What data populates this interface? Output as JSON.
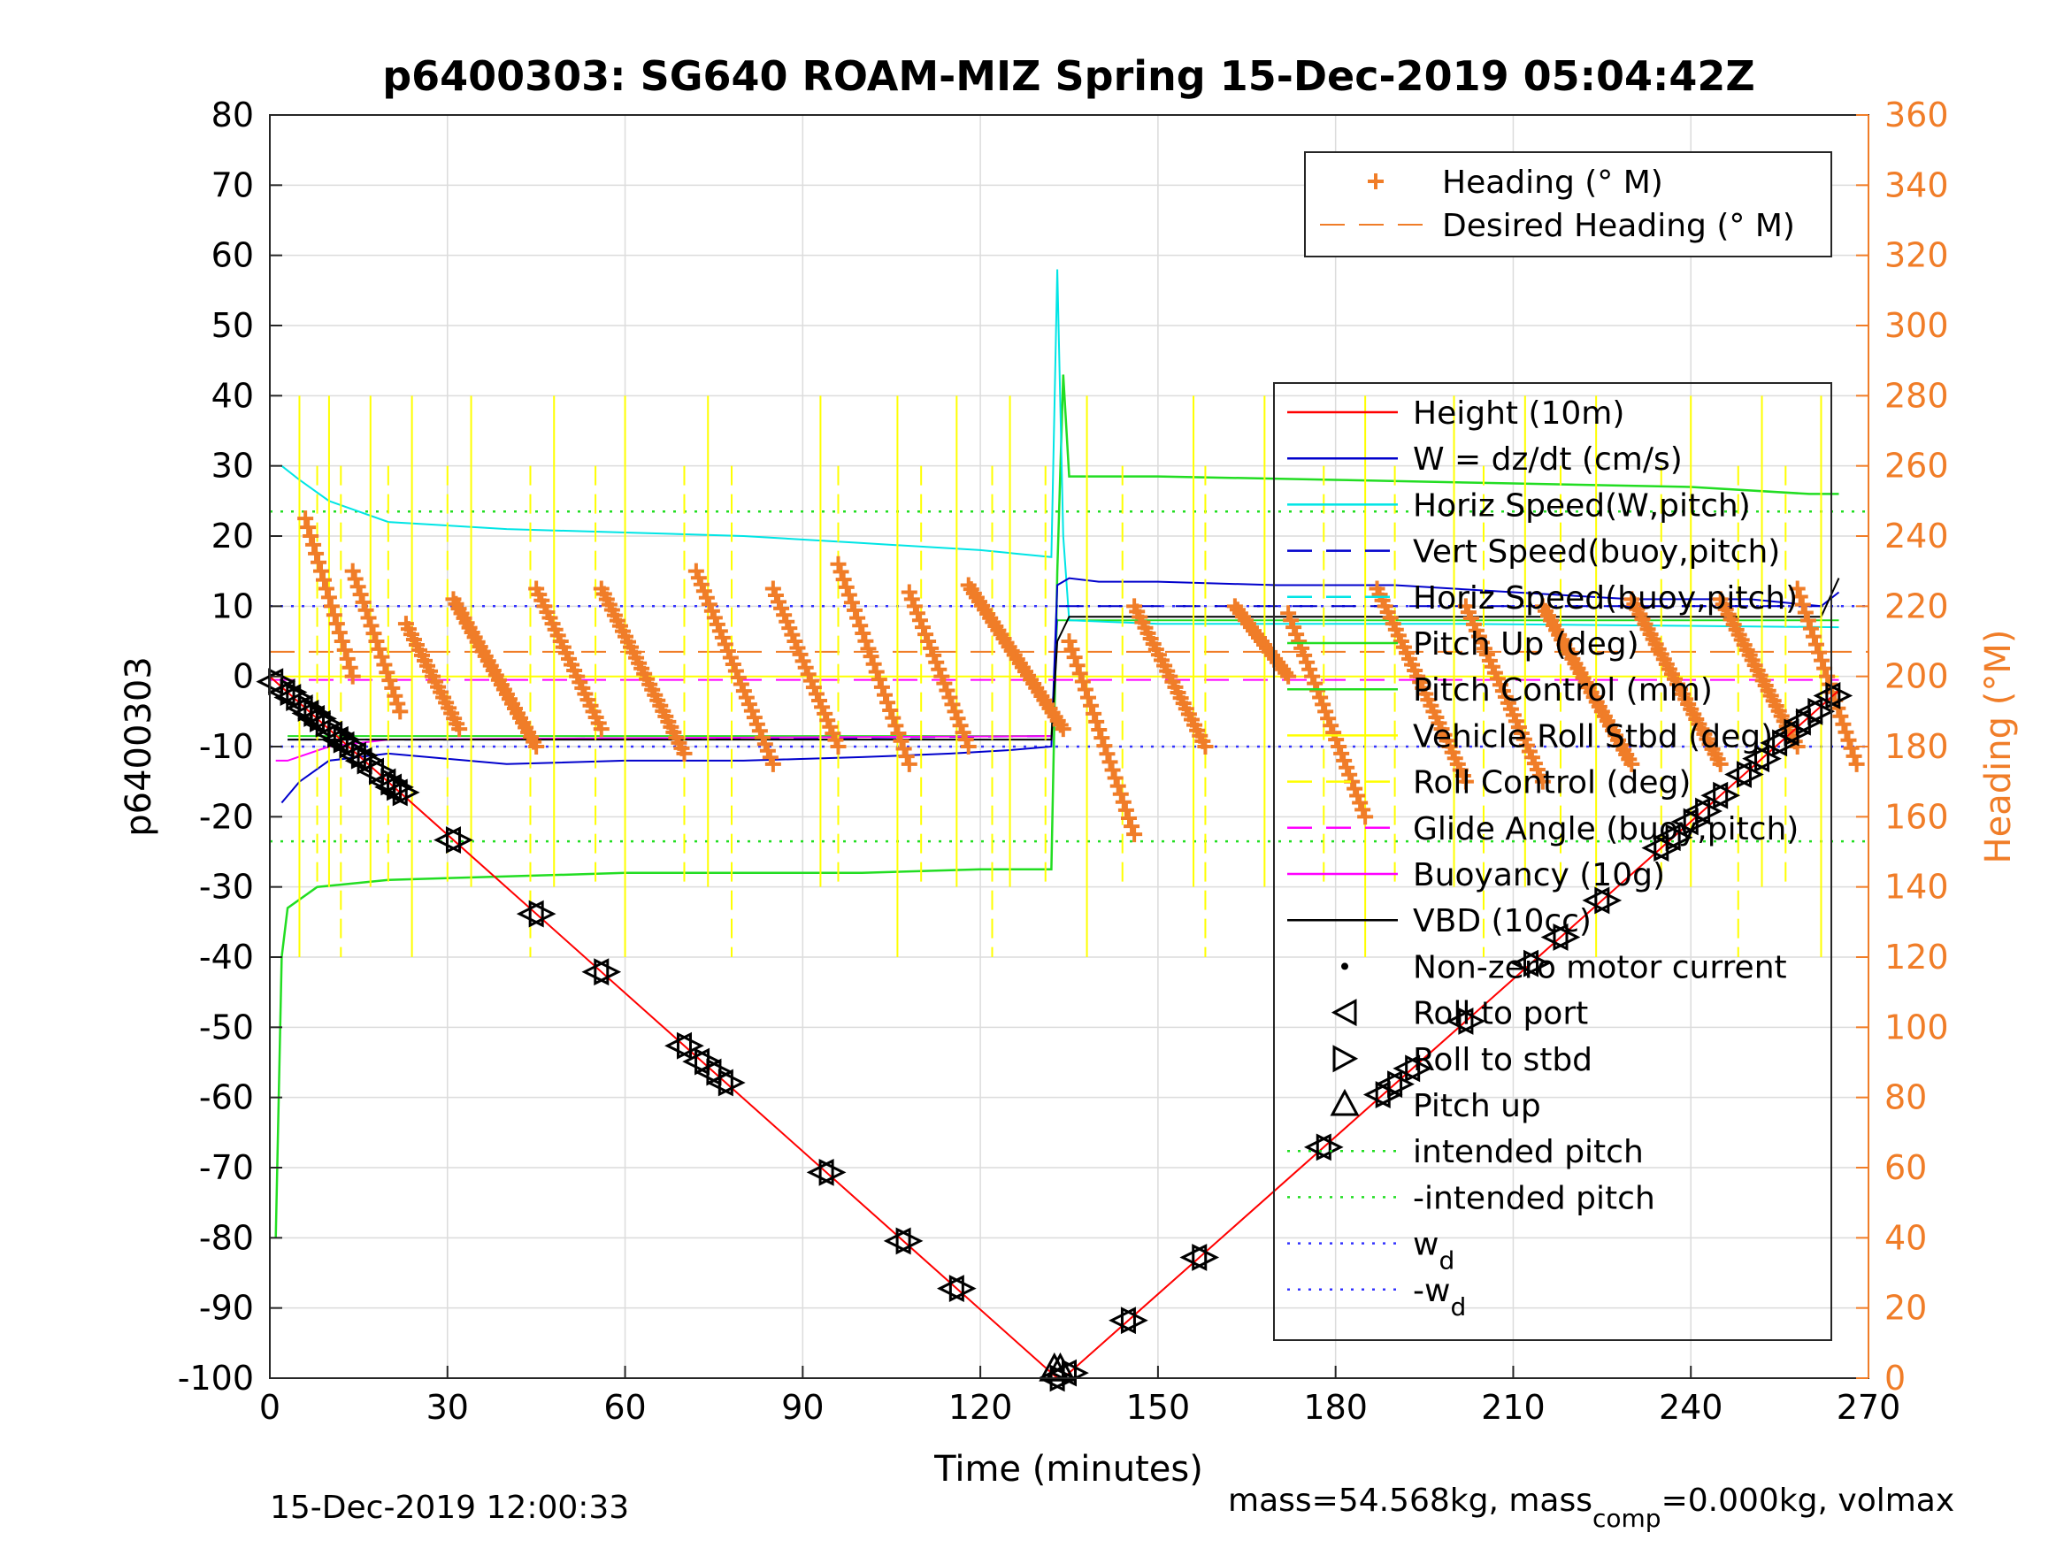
{
  "chart_data": {
    "type": "line",
    "title": "p6400303: SG640 ROAM-MIZ Spring 15-Dec-2019 05:04:42Z",
    "xlabel": "Time (minutes)",
    "ylabel": "p6400303",
    "ylabel_right": "Heading (°M)",
    "xlim": [
      0,
      270
    ],
    "ylim": [
      -100,
      80
    ],
    "ylim_right": [
      0,
      360
    ],
    "x_ticks": [
      0,
      30,
      60,
      90,
      120,
      150,
      180,
      210,
      240,
      270
    ],
    "y_ticks": [
      80,
      70,
      60,
      50,
      40,
      30,
      20,
      10,
      0,
      -10,
      -20,
      -30,
      -40,
      -50,
      -60,
      -70,
      -80,
      -90,
      -100
    ],
    "y_right_ticks": [
      360,
      340,
      320,
      300,
      280,
      260,
      240,
      220,
      200,
      180,
      160,
      140,
      120,
      100,
      80,
      60,
      40,
      20,
      0
    ],
    "grid": true,
    "colors": {
      "heading": "#f07d28",
      "height": "#ff0000",
      "w": "#0000cc",
      "horiz": "#00e5e5",
      "pitch": "#22dd22",
      "roll": "#ffff00",
      "glide": "#ff00ff",
      "vbd": "#000000",
      "wd": "#3333ff",
      "intended": "#22dd22"
    },
    "legend_heading": {
      "placement": "top-right",
      "entries": [
        "Heading (° M)",
        "Desired Heading (° M)"
      ]
    },
    "legend_main": {
      "placement": "right",
      "entries": [
        "Height (10m)",
        "W = dz/dt (cm/s)",
        "Horiz Speed(W,pitch)",
        "Vert Speed(buoy,pitch)",
        "Horiz Speed(buoy,pitch)",
        "Pitch Up (deg)",
        "Pitch Control (mm)",
        "Vehicle Roll Stbd (deg)",
        "Roll Control (deg)",
        "Glide Angle (buoy,pitch)",
        "Buoyancy (10g)",
        "VBD (10cc)",
        "Non-zero motor current",
        "Roll to port",
        "Roll to stbd",
        "Pitch up",
        "intended pitch",
        "-intended pitch",
        "w",
        "-w"
      ],
      "subscript": "d"
    },
    "series": [
      {
        "name": "Height (10m)",
        "x": [
          0,
          133,
          134,
          265
        ],
        "y": [
          0,
          -100,
          -100,
          -2
        ]
      },
      {
        "name": "W = dz/dt (cm/s)",
        "x": [
          2,
          5,
          10,
          20,
          40,
          60,
          80,
          100,
          115,
          125,
          132,
          133,
          135,
          140,
          150,
          170,
          190,
          210,
          230,
          250,
          262,
          265
        ],
        "y": [
          -18,
          -15,
          -12,
          -11,
          -12.5,
          -12,
          -12,
          -11.5,
          -11,
          -10.5,
          -10,
          13,
          14,
          13.5,
          13.5,
          13,
          13,
          12,
          11,
          11,
          10,
          12
        ]
      },
      {
        "name": "Horiz Speed(W,pitch)",
        "x": [
          2,
          5,
          10,
          20,
          40,
          60,
          80,
          100,
          120,
          132,
          133,
          134,
          135,
          150,
          200,
          265
        ],
        "y": [
          30,
          28,
          25,
          22,
          21,
          20.5,
          20,
          19,
          18,
          17,
          58,
          20,
          8,
          7.5,
          7.5,
          7
        ]
      },
      {
        "name": "Vert Speed(buoy,pitch)",
        "x": [
          3,
          30,
          60,
          90,
          120,
          132,
          133,
          200,
          265
        ],
        "y": [
          -9,
          -9,
          -8.8,
          -8.8,
          -8.6,
          -8.5,
          10,
          10,
          10
        ]
      },
      {
        "name": "Pitch Up (deg)",
        "x": [
          1,
          2,
          3,
          8,
          20,
          40,
          60,
          80,
          100,
          120,
          132,
          133,
          134,
          135,
          150,
          180,
          210,
          240,
          260,
          265
        ],
        "y": [
          -80,
          -40,
          -33,
          -30,
          -29,
          -28.5,
          -28,
          -28,
          -28,
          -27.5,
          -27.5,
          15,
          43,
          28.5,
          28.5,
          28,
          27.5,
          27,
          26,
          26
        ]
      },
      {
        "name": "Pitch Control (mm)",
        "x": [
          3,
          132,
          133,
          265
        ],
        "y": [
          -8.5,
          -8.5,
          8,
          8
        ]
      },
      {
        "name": "Vehicle Roll Stbd (deg)",
        "x": [
          0,
          20,
          40,
          60,
          80,
          100,
          120,
          132,
          133,
          150,
          180,
          210,
          240,
          265
        ],
        "y": [
          0,
          0,
          0,
          0,
          0,
          0,
          0,
          0,
          0,
          0,
          0,
          0,
          0,
          0
        ]
      },
      {
        "name": "Glide Angle (buoy,pitch)",
        "x": [
          0,
          265
        ],
        "y": [
          -0.5,
          -0.5
        ]
      },
      {
        "name": "Buoyancy (10g)",
        "x": [
          1,
          3,
          10,
          20,
          60,
          132
        ],
        "y": [
          -12,
          -12,
          -10,
          -9,
          -8.8,
          -8.5
        ]
      },
      {
        "name": "VBD (10cc)",
        "x": [
          3,
          132,
          133,
          135,
          262,
          265
        ],
        "y": [
          -9,
          -9,
          5,
          8.5,
          8.5,
          14
        ]
      },
      {
        "name": "intended pitch",
        "x": [
          0,
          270
        ],
        "y": [
          23.5,
          23.5
        ]
      },
      {
        "name": "-intended pitch",
        "x": [
          0,
          270
        ],
        "y": [
          -23.5,
          -23.5
        ]
      },
      {
        "name": "w",
        "x": [
          0,
          270
        ],
        "y": [
          10,
          10
        ]
      },
      {
        "name": "-w",
        "x": [
          0,
          270
        ],
        "y": [
          -10,
          -10
        ]
      },
      {
        "name": "Heading (° M)",
        "axis": "right",
        "sawtooth": [
          {
            "x0": 6,
            "x1": 14,
            "y0": 245,
            "y1": 200
          },
          {
            "x0": 14,
            "x1": 22,
            "y0": 230,
            "y1": 190
          },
          {
            "x0": 23,
            "x1": 32,
            "y0": 215,
            "y1": 185
          },
          {
            "x0": 31,
            "x1": 45,
            "y0": 222,
            "y1": 180
          },
          {
            "x0": 45,
            "x1": 56,
            "y0": 225,
            "y1": 185
          },
          {
            "x0": 56,
            "x1": 70,
            "y0": 225,
            "y1": 178
          },
          {
            "x0": 72,
            "x1": 85,
            "y0": 230,
            "y1": 175
          },
          {
            "x0": 85,
            "x1": 96,
            "y0": 225,
            "y1": 180
          },
          {
            "x0": 96,
            "x1": 108,
            "y0": 232,
            "y1": 175
          },
          {
            "x0": 108,
            "x1": 118,
            "y0": 224,
            "y1": 180
          },
          {
            "x0": 118,
            "x1": 134,
            "y0": 226,
            "y1": 185
          },
          {
            "x0": 135,
            "x1": 146,
            "y0": 210,
            "y1": 155
          },
          {
            "x0": 146,
            "x1": 158,
            "y0": 220,
            "y1": 180
          },
          {
            "x0": 163,
            "x1": 172,
            "y0": 220,
            "y1": 200
          },
          {
            "x0": 172,
            "x1": 185,
            "y0": 218,
            "y1": 160
          },
          {
            "x0": 187,
            "x1": 202,
            "y0": 225,
            "y1": 170
          },
          {
            "x0": 202,
            "x1": 215,
            "y0": 220,
            "y1": 170
          },
          {
            "x0": 215,
            "x1": 230,
            "y0": 220,
            "y1": 175
          },
          {
            "x0": 230,
            "x1": 245,
            "y0": 222,
            "y1": 175
          },
          {
            "x0": 245,
            "x1": 258,
            "y0": 222,
            "y1": 180
          },
          {
            "x0": 258,
            "x1": 268,
            "y0": 225,
            "y1": 175
          }
        ]
      },
      {
        "name": "Desired Heading (° M)",
        "axis": "right",
        "x": [
          0,
          270
        ],
        "y": [
          207,
          207
        ]
      }
    ],
    "roll_spikes_x": [
      5,
      8,
      10,
      12,
      17,
      20,
      24,
      30,
      34,
      44,
      48,
      55,
      60,
      70,
      74,
      78,
      93,
      96,
      106,
      110,
      116,
      122,
      125,
      131,
      138,
      144,
      156,
      158,
      168,
      178,
      185,
      190,
      200,
      205,
      212,
      218,
      224,
      235,
      240,
      248,
      252,
      256,
      262
    ],
    "roll_markers_x": [
      1,
      3,
      4,
      6,
      7,
      8,
      9,
      11,
      12,
      13,
      15,
      16,
      18,
      20,
      21,
      22,
      31,
      45,
      56,
      70,
      73,
      75,
      77,
      94,
      107,
      116,
      133,
      135,
      145,
      157,
      178,
      188,
      190,
      193,
      202,
      213,
      218,
      225,
      235,
      237,
      240,
      242,
      245,
      249,
      252,
      255,
      257,
      259,
      261,
      264
    ]
  },
  "footer": {
    "timestamp": "15-Dec-2019 12:00:33",
    "mass_prefix": "mass=54.568kg, mass",
    "mass_sub": "comp",
    "mass_suffix": "=0.000kg, volmax"
  }
}
